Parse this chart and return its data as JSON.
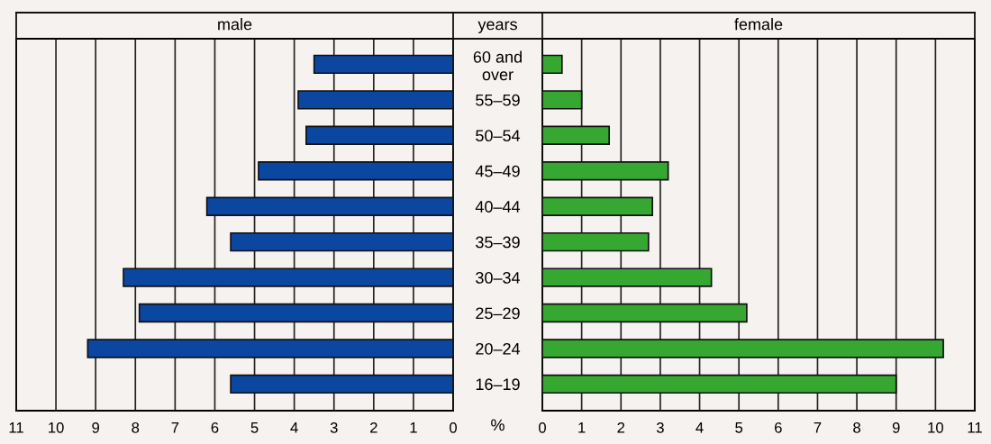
{
  "chart_data": [
    {
      "type": "bar",
      "orientation": "horizontal",
      "title": "male",
      "xlabel": "%",
      "categories": [
        null,
        null,
        null,
        null,
        null,
        null,
        null,
        null,
        null,
        null
      ],
      "values": [
        3.5,
        3.9,
        3.7,
        4.9,
        6.2,
        5.6,
        8.3,
        7.9,
        9.2,
        5.6
      ],
      "color": "#0b46a0",
      "xlim": [
        11,
        0
      ],
      "xticks": [
        11,
        10,
        9,
        8,
        7,
        6,
        5,
        4,
        3,
        2,
        1,
        0
      ],
      "grid": "x",
      "tick_labels": "x"
    },
    {
      "type": "bar",
      "orientation": "horizontal",
      "title": "female",
      "ylabel": "years",
      "categories": [
        "60 and\nover",
        "55–59",
        "50–54",
        "45–49",
        "40–44",
        "35–39",
        "30–34",
        "25–29",
        "20–24",
        "16–19"
      ],
      "values": [
        0.5,
        1.0,
        1.7,
        3.2,
        2.8,
        2.7,
        4.3,
        5.2,
        10.2,
        9.0
      ],
      "color": "#36a832",
      "xlim": [
        0,
        11
      ],
      "xticks": [
        0,
        1,
        2,
        3,
        4,
        5,
        6,
        7,
        8,
        9,
        10,
        11
      ],
      "grid": "x"
    }
  ]
}
